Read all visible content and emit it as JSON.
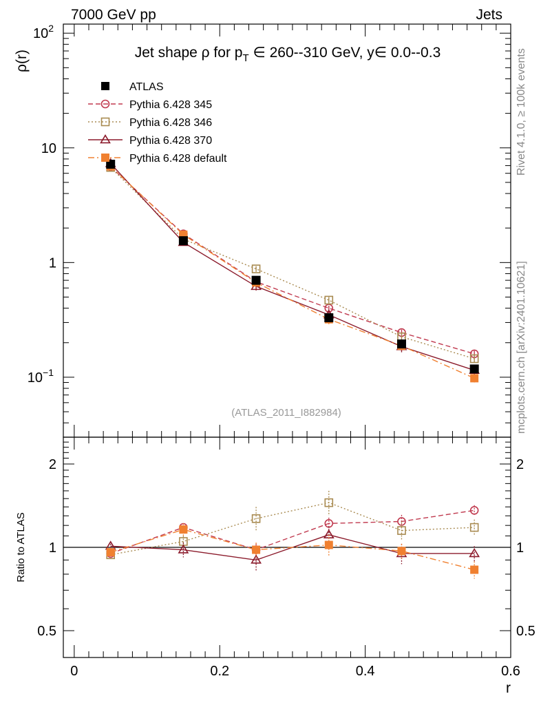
{
  "header": {
    "left": "7000 GeV pp",
    "right": "Jets"
  },
  "side_labels": {
    "rivet": "Rivet 4.1.0, ≥ 100k events",
    "mcplots": "mcplots.cern.ch [arXiv:2401.10621]"
  },
  "chart_data": {
    "type": "line",
    "title": "Jet shape ρ for p_T ∈ 260--310 GeV, y∈ 0.0--0.3",
    "title_parts": {
      "a": "Jet shape ρ for p",
      "sub": "T",
      "b": " ∈ 260--310 GeV, y∈ 0.0--0.3"
    },
    "analysis_id": "(ATLAS_2011_I882984)",
    "xlabel": "r",
    "ylabel": "ρ(r)",
    "ratio_ylabel": "Ratio to ATLAS",
    "xlim": [
      0,
      0.6
    ],
    "ylim": [
      0.03,
      120
    ],
    "ratio_ylim": [
      0.4,
      2.5
    ],
    "yscale": "log",
    "x_ticks": [
      {
        "v": 0,
        "label": "0"
      },
      {
        "v": 0.2,
        "label": "0.2"
      },
      {
        "v": 0.4,
        "label": "0.4"
      },
      {
        "v": 0.6,
        "label": "0.6"
      }
    ],
    "y_ticks": [
      {
        "v": 0.1,
        "base": "10",
        "exp": "−1"
      },
      {
        "v": 1,
        "base": "1",
        "exp": ""
      },
      {
        "v": 10,
        "base": "10",
        "exp": ""
      },
      {
        "v": 100,
        "base": "10",
        "exp": "2"
      }
    ],
    "ratio_ticks": [
      {
        "v": 0.5,
        "label": "0.5"
      },
      {
        "v": 1,
        "label": "1"
      },
      {
        "v": 2,
        "label": "2"
      }
    ],
    "x": [
      0.05,
      0.15,
      0.25,
      0.35,
      0.45,
      0.55
    ],
    "series": [
      {
        "name": "ATLAS",
        "color": "#000000",
        "marker": "square-filled",
        "line": "none",
        "values": [
          7.2,
          1.55,
          0.7,
          0.33,
          0.195,
          0.118
        ],
        "errors": [
          0.35,
          0.08,
          0.04,
          0.02,
          0.012,
          0.008
        ],
        "ratio": [
          1,
          1,
          1,
          1,
          1,
          1
        ],
        "ratio_band": [
          0.03,
          0.04,
          0.05,
          0.06,
          0.07,
          0.07
        ]
      },
      {
        "name": "Pythia 6.428 345",
        "color": "#c0394e",
        "marker": "circle-open",
        "line": "dashed",
        "values": [
          6.85,
          1.78,
          0.68,
          0.4,
          0.245,
          0.16
        ],
        "errors": [
          0.2,
          0.05,
          0.03,
          0.02,
          0.015,
          0.01
        ],
        "ratio": [
          0.95,
          1.18,
          0.98,
          1.22,
          1.24,
          1.36
        ],
        "ratio_errors": [
          0.02,
          0.04,
          0.05,
          0.06,
          0.07,
          0.06
        ]
      },
      {
        "name": "Pythia 6.428 346",
        "color": "#a88a50",
        "marker": "square-open",
        "line": "dotted",
        "values": [
          6.75,
          1.6,
          0.88,
          0.47,
          0.225,
          0.145
        ],
        "errors": [
          0.2,
          0.05,
          0.05,
          0.03,
          0.015,
          0.01
        ],
        "ratio": [
          0.94,
          1.05,
          1.27,
          1.45,
          1.15,
          1.18
        ],
        "ratio_errors": [
          0.02,
          0.05,
          0.13,
          0.15,
          0.09,
          0.08
        ]
      },
      {
        "name": "Pythia 6.428 370",
        "color": "#8b1a2b",
        "marker": "triangle-open",
        "line": "solid",
        "values": [
          7.3,
          1.5,
          0.62,
          0.35,
          0.185,
          0.115
        ],
        "errors": [
          0.2,
          0.06,
          0.05,
          0.03,
          0.02,
          0.01
        ],
        "ratio": [
          1.01,
          0.98,
          0.9,
          1.11,
          0.95,
          0.95
        ],
        "ratio_errors": [
          0.02,
          0.06,
          0.08,
          0.08,
          0.08,
          0.06
        ]
      },
      {
        "name": "Pythia 6.428 default",
        "color": "#f08030",
        "marker": "square-filled",
        "line": "dashdot",
        "values": [
          6.9,
          1.75,
          0.67,
          0.32,
          0.188,
          0.098
        ],
        "errors": [
          0.2,
          0.06,
          0.04,
          0.03,
          0.015,
          0.008
        ],
        "ratio": [
          0.96,
          1.16,
          0.98,
          1.02,
          0.97,
          0.83
        ],
        "ratio_errors": [
          0.02,
          0.06,
          0.06,
          0.09,
          0.06,
          0.06
        ]
      }
    ]
  }
}
